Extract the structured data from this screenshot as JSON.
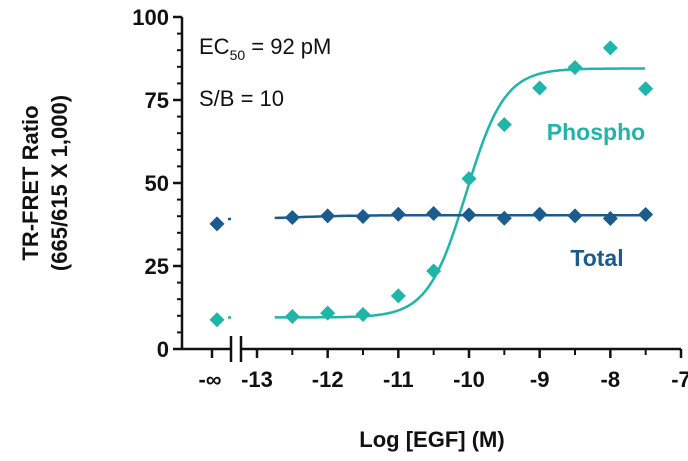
{
  "chart_data": {
    "type": "scatter",
    "xlabel": "Log [EGF] (M)",
    "ylabel_line1": "TR-FRET Ratio",
    "ylabel_line2": "(665/615 X 1,000)",
    "ylim": [
      0,
      100
    ],
    "xlim": [
      -13,
      -7
    ],
    "x_ticks": [
      "-13",
      "-12",
      "-11",
      "-10",
      "-9",
      "-8",
      "-7"
    ],
    "x_tick_values": [
      -13,
      -12,
      -11,
      -10,
      -9,
      -8,
      -7
    ],
    "x_break_tick": "-∞",
    "y_ticks": [
      "0",
      "25",
      "50",
      "75",
      "100"
    ],
    "y_tick_values": [
      0,
      25,
      50,
      75,
      100
    ],
    "annotations": {
      "ec50_prefix": "EC",
      "ec50_sub": "50",
      "ec50_value": " = 92 pM",
      "sb": "S/B = 10"
    },
    "series": [
      {
        "name": "Phospho",
        "color": "#1fb5a8",
        "zero_point": 8.8,
        "x": [
          -12.5,
          -12,
          -11.5,
          -11,
          -10.5,
          -10,
          -9.5,
          -9,
          -8.5,
          -8,
          -7.5
        ],
        "y": [
          9.8,
          10.8,
          10.4,
          16,
          23.5,
          51.3,
          67.6,
          78.6,
          84.8,
          90.7,
          78.4
        ],
        "fit": {
          "bottom": 9.5,
          "top": 84.5,
          "logEC50": -10.04,
          "hill": 1.6
        }
      },
      {
        "name": "Total",
        "color": "#1b5c8c",
        "zero_point": 37.7,
        "x": [
          -12.5,
          -12,
          -11.5,
          -11,
          -10.5,
          -10,
          -9.5,
          -9,
          -8.5,
          -8,
          -7.5
        ],
        "y": [
          39.6,
          40.1,
          39.9,
          40.6,
          40.8,
          40.4,
          39.4,
          40.6,
          40.1,
          39.3,
          40.5
        ],
        "fit": {
          "bottom": 39,
          "top": 40.3,
          "logEC50": -12.5,
          "hill": 1.0
        }
      }
    ]
  }
}
